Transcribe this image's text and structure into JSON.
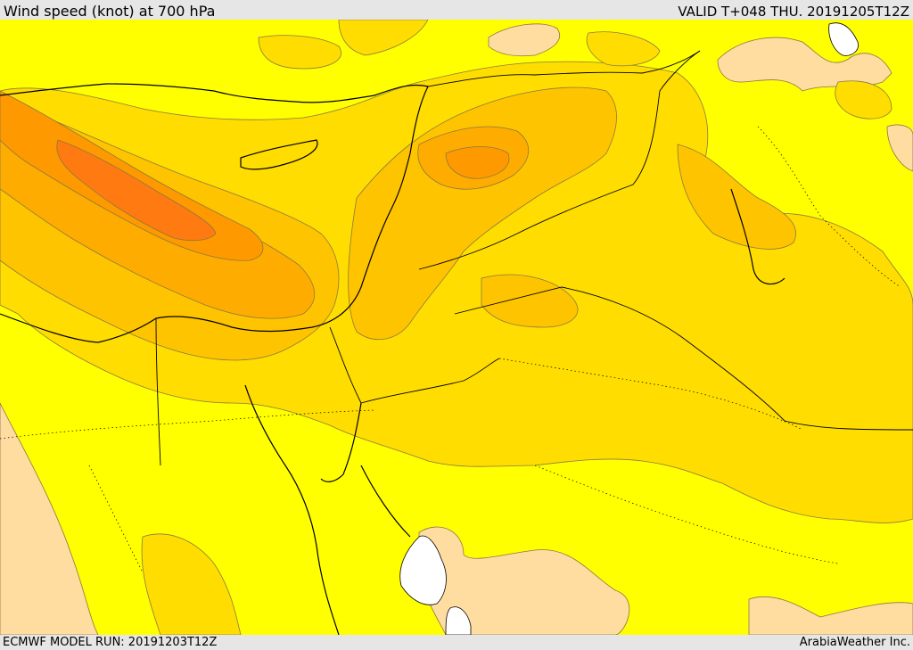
{
  "header": {
    "title": "Wind speed (knot) at 700 hPa",
    "valid": "VALID T+048 THU. 20191205T12Z"
  },
  "footer": {
    "model_run": "ECMWF MODEL RUN: 20191203T12Z",
    "credit": "ArabiaWeather Inc."
  },
  "colors": {
    "background_yellow": "#ffff00",
    "light_tan": "#ffdca0",
    "gold": "#ffdd00",
    "amber": "#ffc400",
    "orange_light": "#ffac00",
    "orange": "#ff9900",
    "orange_dark": "#ff7a10",
    "white": "#ffffff",
    "contour_line": "#8a7a40",
    "coastline": "#000000"
  }
}
